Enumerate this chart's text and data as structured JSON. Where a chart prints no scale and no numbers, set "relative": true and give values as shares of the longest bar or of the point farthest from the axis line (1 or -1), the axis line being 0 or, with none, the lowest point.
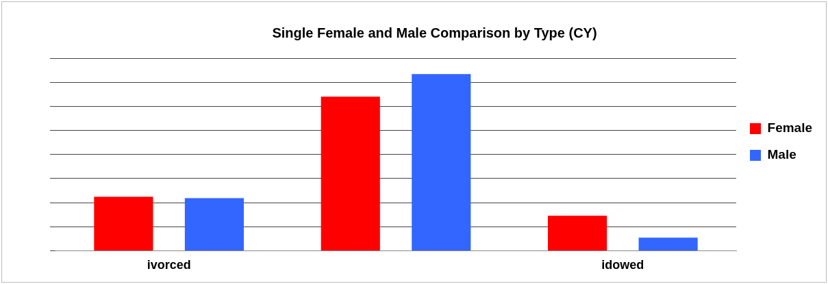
{
  "chart_data": {
    "type": "bar",
    "title": "Single Female and Male Comparison by Type (CY)",
    "categories": [
      "ivorced",
      null,
      "idowed"
    ],
    "relative": true,
    "grid": "y",
    "legend": "right",
    "series": [
      {
        "name": "Female",
        "color": "#ff0000",
        "values": [
          0.306,
          0.872,
          0.198
        ]
      },
      {
        "name": "Male",
        "color": "#3366ff",
        "values": [
          0.298,
          1,
          0.074
        ]
      }
    ]
  }
}
